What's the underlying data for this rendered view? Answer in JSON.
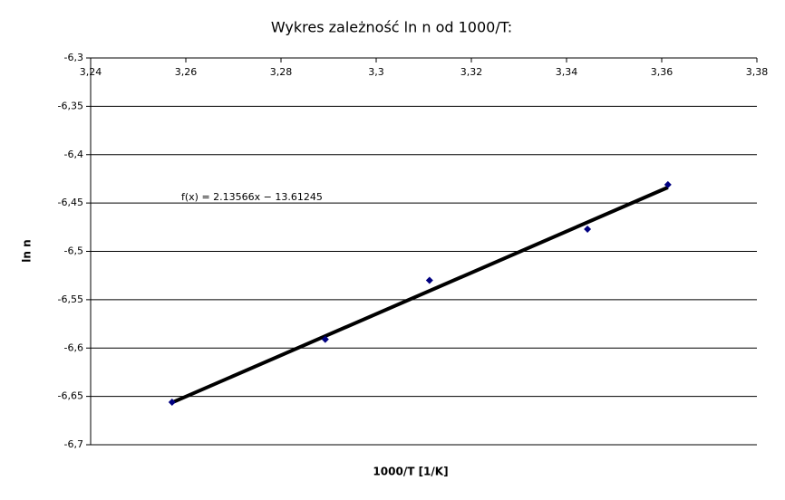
{
  "chart_data": {
    "type": "scatter",
    "title": "Wykres zależność ln n od 1000/T:",
    "x_label": "1000/T [1/K]",
    "y_label": "ln n",
    "series": [
      {
        "name": "ln n",
        "color": "#000080",
        "x": [
          3.2571,
          3.2893,
          3.3112,
          3.3444,
          3.3613
        ],
        "values": [
          -6.656,
          -6.591,
          -6.53,
          -6.477,
          -6.431
        ]
      }
    ],
    "trendline": {
      "slope": 2.13566,
      "intercept": -13.61245,
      "color": "#000000",
      "label": "f(x) = 2.13566x − 13.61245"
    },
    "xlim": [
      3.24,
      3.38
    ],
    "xticks": [
      {
        "value": 3.24,
        "label": "3,24"
      },
      {
        "value": 3.26,
        "label": "3,26"
      },
      {
        "value": 3.28,
        "label": "3,28"
      },
      {
        "value": 3.3,
        "label": "3,3"
      },
      {
        "value": 3.32,
        "label": "3,32"
      },
      {
        "value": 3.34,
        "label": "3,34"
      },
      {
        "value": 3.36,
        "label": "3,36"
      },
      {
        "value": 3.38,
        "label": "3,38"
      }
    ],
    "ylim": [
      -6.7,
      -6.3
    ],
    "yticks": [
      {
        "value": -6.7,
        "label": "-6,7"
      },
      {
        "value": -6.65,
        "label": "-6,65"
      },
      {
        "value": -6.6,
        "label": "-6,6"
      },
      {
        "value": -6.55,
        "label": "-6,55"
      },
      {
        "value": -6.5,
        "label": "-6,5"
      },
      {
        "value": -6.45,
        "label": "-6,45"
      },
      {
        "value": -6.4,
        "label": "-6,4"
      },
      {
        "value": -6.35,
        "label": "-6,35"
      },
      {
        "value": -6.3,
        "label": "-6,3"
      }
    ],
    "grid": true
  }
}
